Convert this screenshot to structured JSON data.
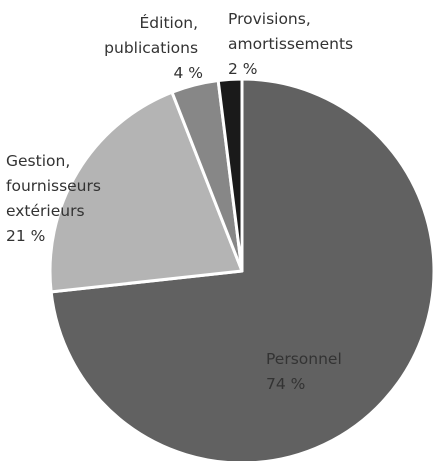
{
  "chart_data": {
    "type": "pie",
    "title": "",
    "start": "12 o'clock, clockwise",
    "slices": [
      {
        "name": "Personnel",
        "lines": [
          "Personnel"
        ],
        "value": 74,
        "label": "74 %",
        "color": "#616161"
      },
      {
        "name": "Gestion, fournisseurs extérieurs",
        "lines": [
          "Gestion,",
          "fournisseurs",
          "extérieurs"
        ],
        "value": 21,
        "label": "21 %",
        "color": "#b4b4b4"
      },
      {
        "name": "Édition, publications",
        "lines": [
          "Édition,",
          "publications"
        ],
        "value": 4,
        "label": "4 %",
        "color": "#878787"
      },
      {
        "name": "Provisions, amortissements",
        "lines": [
          "Provisions,",
          "amortissements"
        ],
        "value": 2,
        "label": "2 %",
        "color": "#1a1a1a"
      }
    ]
  }
}
